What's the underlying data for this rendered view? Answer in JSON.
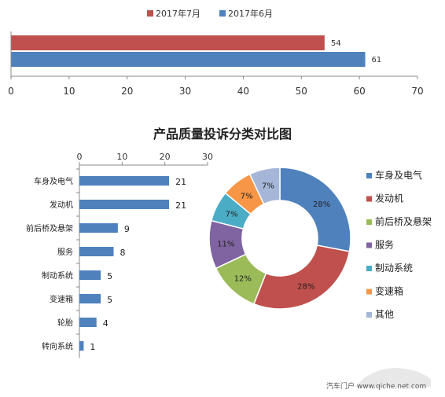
{
  "chart_data": [
    {
      "type": "bar",
      "orientation": "horizontal",
      "series": [
        {
          "name": "2017年7月",
          "values": [
            54
          ],
          "color": "#C0504D"
        },
        {
          "name": "2017年6月",
          "values": [
            61
          ],
          "color": "#4F81BD"
        }
      ],
      "xlim": [
        0,
        70
      ],
      "xticks": [
        "0",
        "10",
        "20",
        "30",
        "40",
        "50",
        "60",
        "70"
      ],
      "legend_position": "top",
      "grid": false
    },
    {
      "type": "bar",
      "orientation": "horizontal",
      "title": "产品质量投诉分类对比图",
      "categories": [
        "车身及电气",
        "发动机",
        "前后桥及悬架",
        "服务",
        "制动系统",
        "变速箱",
        "轮胎",
        "转向系统"
      ],
      "values": [
        21,
        21,
        9,
        8,
        5,
        5,
        4,
        1
      ],
      "xlim": [
        0,
        30
      ],
      "xticks": [
        "0",
        "10",
        "20",
        "30"
      ],
      "color": "#4F81BD",
      "grid": false
    },
    {
      "type": "pie",
      "style": "donut",
      "labels": [
        "车身及电气",
        "发动机",
        "前后桥及悬架",
        "服务",
        "制动系统",
        "变速箱",
        "其他"
      ],
      "values": [
        28,
        28,
        12,
        11,
        7,
        7,
        7
      ],
      "value_labels": [
        "28%",
        "28%",
        "12%",
        "11%",
        "7%",
        "7%",
        "7%"
      ],
      "colors": [
        "#4F81BD",
        "#C0504D",
        "#9BBB59",
        "#8064A2",
        "#4BACC6",
        "#F79646",
        "#A5B6D8"
      ],
      "legend_position": "right"
    }
  ],
  "watermark": "汽车门户 www.qiche.net.com"
}
